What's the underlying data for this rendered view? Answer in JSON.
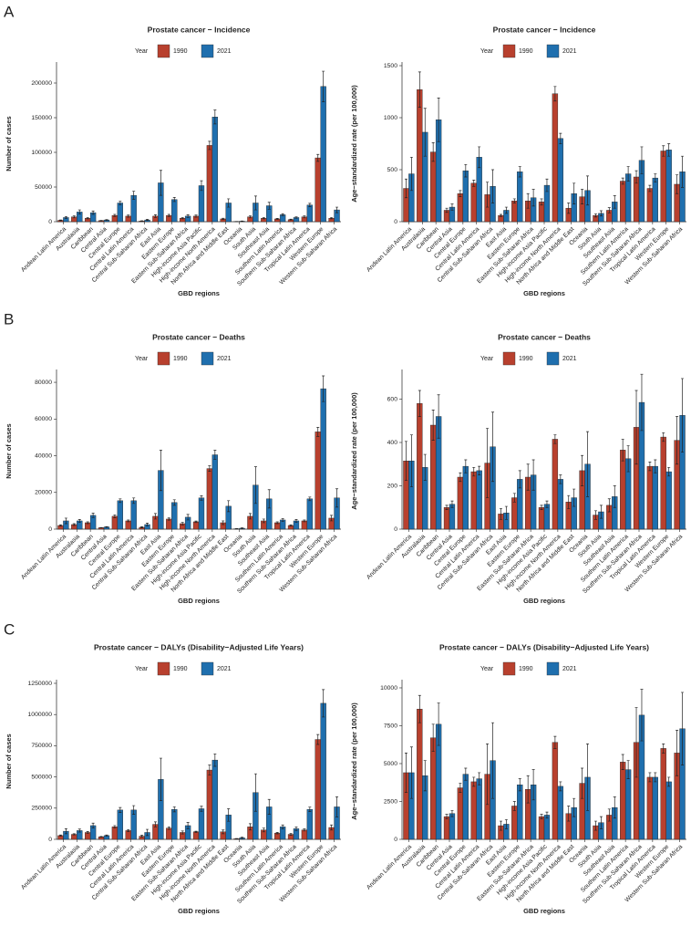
{
  "panel_labels": [
    "A",
    "B",
    "C"
  ],
  "chart_data": [
    {
      "type": "bar",
      "title": "Prostate cancer − Incidence",
      "legend_title": "Year",
      "x_label": "GBD regions",
      "y_label": "Number of cases",
      "categories": [
        "Andean Latin America",
        "Australasia",
        "Caribbean",
        "Central Asia",
        "Central Europe",
        "Central Latin America",
        "Central Sub-Saharan Africa",
        "East Asia",
        "Eastern Europe",
        "Eastern Sub-Saharan Africa",
        "High-income Asia Pacific",
        "High-income North America",
        "North Africa and Middle East",
        "Oceania",
        "South Asia",
        "Southeast Asia",
        "Southern Latin America",
        "Southern Sub-Saharan Africa",
        "Tropical Latin America",
        "Western Europe",
        "Western Sub-Saharan Africa"
      ],
      "series": [
        {
          "name": "1990",
          "color": "#b8402e",
          "values": [
            2000,
            7000,
            5000,
            1500,
            9000,
            8000,
            1000,
            8000,
            9000,
            5000,
            8000,
            110000,
            4000,
            300,
            7000,
            5000,
            4000,
            3000,
            7000,
            92000,
            5000
          ],
          "errors": [
            500,
            1500,
            1000,
            300,
            1500,
            1500,
            300,
            2000,
            1500,
            1000,
            1500,
            6000,
            1000,
            100,
            1500,
            1000,
            800,
            600,
            1500,
            5000,
            1000
          ]
        },
        {
          "name": "2021",
          "color": "#1f6fae",
          "values": [
            6000,
            14000,
            13000,
            2500,
            27000,
            38000,
            2500,
            56000,
            32000,
            8000,
            52000,
            151000,
            27000,
            700,
            27000,
            23000,
            10000,
            6000,
            24000,
            195000,
            17000
          ],
          "errors": [
            1500,
            3000,
            2500,
            500,
            2500,
            6000,
            800,
            18000,
            3000,
            2000,
            7000,
            10000,
            6000,
            300,
            10000,
            5000,
            1500,
            1000,
            2500,
            22000,
            4000
          ]
        }
      ],
      "ylim": [
        0,
        225000
      ],
      "yticks": [
        0,
        50000,
        100000,
        150000,
        200000
      ]
    },
    {
      "type": "bar",
      "title": "Prostate cancer − Incidence",
      "legend_title": "Year",
      "x_label": "GBD regions",
      "y_label": "Age−standardized rate (per 100,000)",
      "categories": [
        "Andean Latin America",
        "Australasia",
        "Caribbean",
        "Central Asia",
        "Central Europe",
        "Central Latin America",
        "Central Sub-Saharan Africa",
        "East Asia",
        "Eastern Europe",
        "Eastern Sub-Saharan Africa",
        "High-income Asia Pacific",
        "High-income North America",
        "North Africa and Middle East",
        "Oceania",
        "South Asia",
        "Southeast Asia",
        "Southern Latin America",
        "Southern Sub-Saharan Africa",
        "Tropical Latin America",
        "Western Europe",
        "Western Sub-Saharan Africa"
      ],
      "series": [
        {
          "name": "1990",
          "color": "#b8402e",
          "values": [
            320,
            1270,
            670,
            110,
            270,
            370,
            260,
            60,
            200,
            200,
            190,
            1230,
            130,
            240,
            60,
            110,
            390,
            430,
            320,
            680,
            360
          ],
          "errors": [
            90,
            170,
            90,
            20,
            30,
            30,
            120,
            10,
            20,
            70,
            30,
            70,
            50,
            70,
            15,
            25,
            30,
            60,
            30,
            50,
            90
          ]
        },
        {
          "name": "2021",
          "color": "#1f6fae",
          "values": [
            460,
            860,
            980,
            140,
            490,
            620,
            340,
            110,
            480,
            230,
            350,
            800,
            270,
            300,
            80,
            190,
            460,
            590,
            420,
            690,
            480
          ],
          "errors": [
            160,
            230,
            210,
            30,
            60,
            100,
            160,
            30,
            50,
            80,
            60,
            50,
            100,
            140,
            25,
            60,
            70,
            130,
            40,
            60,
            150
          ]
        }
      ],
      "ylim": [
        0,
        1500
      ],
      "yticks": [
        0,
        500,
        1000,
        1500
      ]
    },
    {
      "type": "bar",
      "title": "Prostate cancer − Deaths",
      "legend_title": "Year",
      "x_label": "GBD regions",
      "y_label": "Number of cases",
      "categories": [
        "Andean Latin America",
        "Australasia",
        "Caribbean",
        "Central Asia",
        "Central Europe",
        "Central Latin America",
        "Central Sub-Saharan Africa",
        "East Asia",
        "Eastern Europe",
        "Eastern Sub-Saharan Africa",
        "High-income Asia Pacific",
        "High-income North America",
        "North Africa and Middle East",
        "Oceania",
        "South Asia",
        "Southeast Asia",
        "Southern Latin America",
        "Southern Sub-Saharan Africa",
        "Tropical Latin America",
        "Western Europe",
        "Western Sub-Saharan Africa"
      ],
      "series": [
        {
          "name": "1990",
          "color": "#b8402e",
          "values": [
            2000,
            2500,
            3500,
            800,
            7000,
            4500,
            1000,
            7000,
            5500,
            3000,
            4000,
            33000,
            3500,
            200,
            7000,
            4500,
            3500,
            2000,
            4500,
            53000,
            6000
          ],
          "errors": [
            400,
            500,
            500,
            100,
            800,
            500,
            300,
            1500,
            600,
            700,
            400,
            1500,
            1000,
            100,
            1500,
            1000,
            500,
            400,
            500,
            2500,
            1500
          ]
        },
        {
          "name": "2021",
          "color": "#1f6fae",
          "values": [
            4500,
            4500,
            7500,
            1200,
            15500,
            15500,
            2500,
            32000,
            14500,
            6500,
            17000,
            40500,
            12500,
            500,
            24000,
            16500,
            5000,
            4500,
            16500,
            76500,
            17000
          ],
          "errors": [
            1500,
            800,
            1200,
            200,
            1000,
            1500,
            800,
            11000,
            1500,
            1500,
            1200,
            2500,
            3000,
            200,
            10000,
            5000,
            800,
            800,
            1000,
            7000,
            5000
          ]
        }
      ],
      "ylim": [
        0,
        85000
      ],
      "yticks": [
        0,
        20000,
        40000,
        60000,
        80000
      ]
    },
    {
      "type": "bar",
      "title": "Prostate cancer − Deaths",
      "legend_title": "Year",
      "x_label": "GBD regions",
      "y_label": "Age−standardized rate (per 100,000)",
      "categories": [
        "Andean Latin America",
        "Australasia",
        "Caribbean",
        "Central Asia",
        "Central Europe",
        "Central Latin America",
        "Central Sub-Saharan Africa",
        "East Asia",
        "Eastern Europe",
        "Eastern Sub-Saharan Africa",
        "High-income Asia Pacific",
        "High-income North America",
        "North Africa and Middle East",
        "Oceania",
        "South Asia",
        "Southeast Asia",
        "Southern Latin America",
        "Southern Sub-Saharan Africa",
        "Tropical Latin America",
        "Western Europe",
        "Western Sub-Saharan Africa"
      ],
      "series": [
        {
          "name": "1990",
          "color": "#b8402e",
          "values": [
            315,
            580,
            480,
            100,
            240,
            265,
            305,
            70,
            145,
            240,
            100,
            415,
            125,
            270,
            65,
            110,
            365,
            470,
            290,
            425,
            410
          ],
          "errors": [
            90,
            60,
            70,
            10,
            20,
            20,
            160,
            25,
            20,
            60,
            10,
            20,
            30,
            70,
            20,
            30,
            50,
            170,
            20,
            20,
            110
          ]
        },
        {
          "name": "2021",
          "color": "#1f6fae",
          "values": [
            315,
            285,
            520,
            115,
            290,
            270,
            380,
            75,
            230,
            250,
            115,
            230,
            145,
            300,
            80,
            150,
            325,
            585,
            290,
            265,
            525
          ],
          "errors": [
            120,
            60,
            100,
            15,
            30,
            20,
            160,
            30,
            40,
            70,
            15,
            20,
            40,
            150,
            30,
            50,
            60,
            130,
            30,
            20,
            170
          ]
        }
      ],
      "ylim": [
        0,
        720
      ],
      "yticks": [
        0,
        200,
        400,
        600
      ]
    },
    {
      "type": "bar",
      "title": "Prostate cancer − DALYs (Disability−Adjusted Life Years)",
      "legend_title": "Year",
      "x_label": "GBD regions",
      "y_label": "Number of cases",
      "categories": [
        "Andean Latin America",
        "Australasia",
        "Caribbean",
        "Central Asia",
        "Central Europe",
        "Central Latin America",
        "Central Sub-Saharan Africa",
        "East Asia",
        "Eastern Europe",
        "Eastern Sub-Saharan Africa",
        "High-income Asia Pacific",
        "High-income North America",
        "North Africa and Middle East",
        "Oceania",
        "South Asia",
        "Southeast Asia",
        "Southern Latin America",
        "Southern Sub-Saharan Africa",
        "Tropical Latin America",
        "Western Europe",
        "Western Sub-Saharan Africa"
      ],
      "series": [
        {
          "name": "1990",
          "color": "#b8402e",
          "values": [
            30000,
            40000,
            55000,
            20000,
            100000,
            70000,
            25000,
            120000,
            90000,
            55000,
            60000,
            555000,
            60000,
            5000,
            100000,
            75000,
            50000,
            40000,
            75000,
            800000,
            95000
          ],
          "errors": [
            5000,
            5000,
            8000,
            3000,
            10000,
            8000,
            8000,
            20000,
            10000,
            12000,
            5000,
            40000,
            15000,
            2000,
            25000,
            15000,
            6000,
            8000,
            8000,
            40000,
            20000
          ]
        },
        {
          "name": "2021",
          "color": "#1f6fae",
          "values": [
            65000,
            70000,
            110000,
            30000,
            235000,
            235000,
            55000,
            480000,
            240000,
            110000,
            245000,
            635000,
            195000,
            12000,
            375000,
            260000,
            100000,
            85000,
            240000,
            1090000,
            260000
          ],
          "errors": [
            20000,
            12000,
            20000,
            5000,
            20000,
            35000,
            25000,
            170000,
            20000,
            25000,
            20000,
            50000,
            50000,
            5000,
            150000,
            60000,
            15000,
            15000,
            18000,
            110000,
            80000
          ]
        }
      ],
      "ylim": [
        0,
        1250000
      ],
      "yticks": [
        0,
        250000,
        500000,
        750000,
        1000000,
        1250000
      ]
    },
    {
      "type": "bar",
      "title": "Prostate cancer − DALYs (Disability−Adjusted Life Years)",
      "legend_title": "Year",
      "x_label": "GBD regions",
      "y_label": "Age−standardized rate (per 100,000)",
      "categories": [
        "Andean Latin America",
        "Australasia",
        "Caribbean",
        "Central Asia",
        "Central Europe",
        "Central Latin America",
        "Central Sub-Saharan Africa",
        "East Asia",
        "Eastern Europe",
        "Eastern Sub-Saharan Africa",
        "High-income Asia Pacific",
        "High-income North America",
        "North Africa and Middle East",
        "Oceania",
        "South Asia",
        "Southeast Asia",
        "Southern Latin America",
        "Southern Sub-Saharan Africa",
        "Tropical Latin America",
        "Western Europe",
        "Western Sub-Saharan Africa"
      ],
      "series": [
        {
          "name": "1990",
          "color": "#b8402e",
          "values": [
            4400,
            8600,
            6700,
            1500,
            3400,
            3800,
            4300,
            900,
            2200,
            3300,
            1500,
            6400,
            1700,
            3700,
            900,
            1600,
            5100,
            6400,
            4100,
            6000,
            5700
          ],
          "errors": [
            1300,
            900,
            900,
            150,
            300,
            300,
            2000,
            300,
            300,
            900,
            150,
            400,
            500,
            1000,
            300,
            400,
            500,
            2300,
            300,
            300,
            1500
          ]
        },
        {
          "name": "2021",
          "color": "#1f6fae",
          "values": [
            4400,
            4200,
            7600,
            1700,
            4300,
            4000,
            5200,
            1000,
            3600,
            3600,
            1600,
            3500,
            2100,
            4100,
            1100,
            2100,
            4600,
            8200,
            4100,
            3800,
            7300
          ],
          "errors": [
            1700,
            1000,
            1400,
            200,
            400,
            400,
            2500,
            300,
            400,
            1000,
            200,
            300,
            600,
            2200,
            400,
            700,
            600,
            1700,
            300,
            300,
            2400
          ]
        }
      ],
      "ylim": [
        0,
        10300
      ],
      "yticks": [
        0,
        2500,
        5000,
        7500,
        10000
      ]
    }
  ]
}
